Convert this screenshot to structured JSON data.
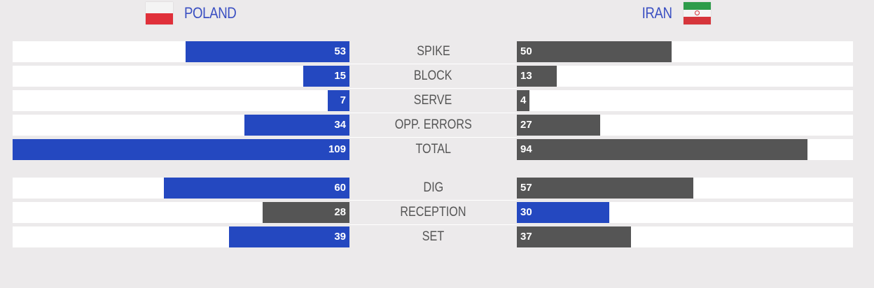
{
  "teams": {
    "left": {
      "name": "POLAND",
      "flag": "poland-flag"
    },
    "right": {
      "name": "IRAN",
      "flag": "iran-flag"
    }
  },
  "colors": {
    "winner": "#2448c0",
    "loser": "#555555",
    "track": "#ffffff",
    "background": "#eceaeb"
  },
  "chart_data": {
    "type": "bar",
    "orientation": "horizontal-butterfly",
    "title": "",
    "max_value": 109,
    "series": [
      {
        "name": "POLAND",
        "values": [
          53,
          15,
          7,
          34,
          109,
          60,
          28,
          39
        ]
      },
      {
        "name": "IRAN",
        "values": [
          50,
          13,
          4,
          27,
          94,
          57,
          30,
          37
        ]
      }
    ],
    "categories": [
      "SPIKE",
      "BLOCK",
      "SERVE",
      "OPP. ERRORS",
      "TOTAL",
      "DIG",
      "RECEPTION",
      "SET"
    ],
    "rows": [
      {
        "label": "SPIKE",
        "left": 53,
        "right": 50,
        "group": 1
      },
      {
        "label": "BLOCK",
        "left": 15,
        "right": 13,
        "group": 1
      },
      {
        "label": "SERVE",
        "left": 7,
        "right": 4,
        "group": 1
      },
      {
        "label": "OPP. ERRORS",
        "left": 34,
        "right": 27,
        "group": 1
      },
      {
        "label": "TOTAL",
        "left": 109,
        "right": 94,
        "group": 1
      },
      {
        "label": "DIG",
        "left": 60,
        "right": 57,
        "group": 2
      },
      {
        "label": "RECEPTION",
        "left": 28,
        "right": 30,
        "group": 2
      },
      {
        "label": "SET",
        "left": 39,
        "right": 37,
        "group": 2
      }
    ]
  }
}
